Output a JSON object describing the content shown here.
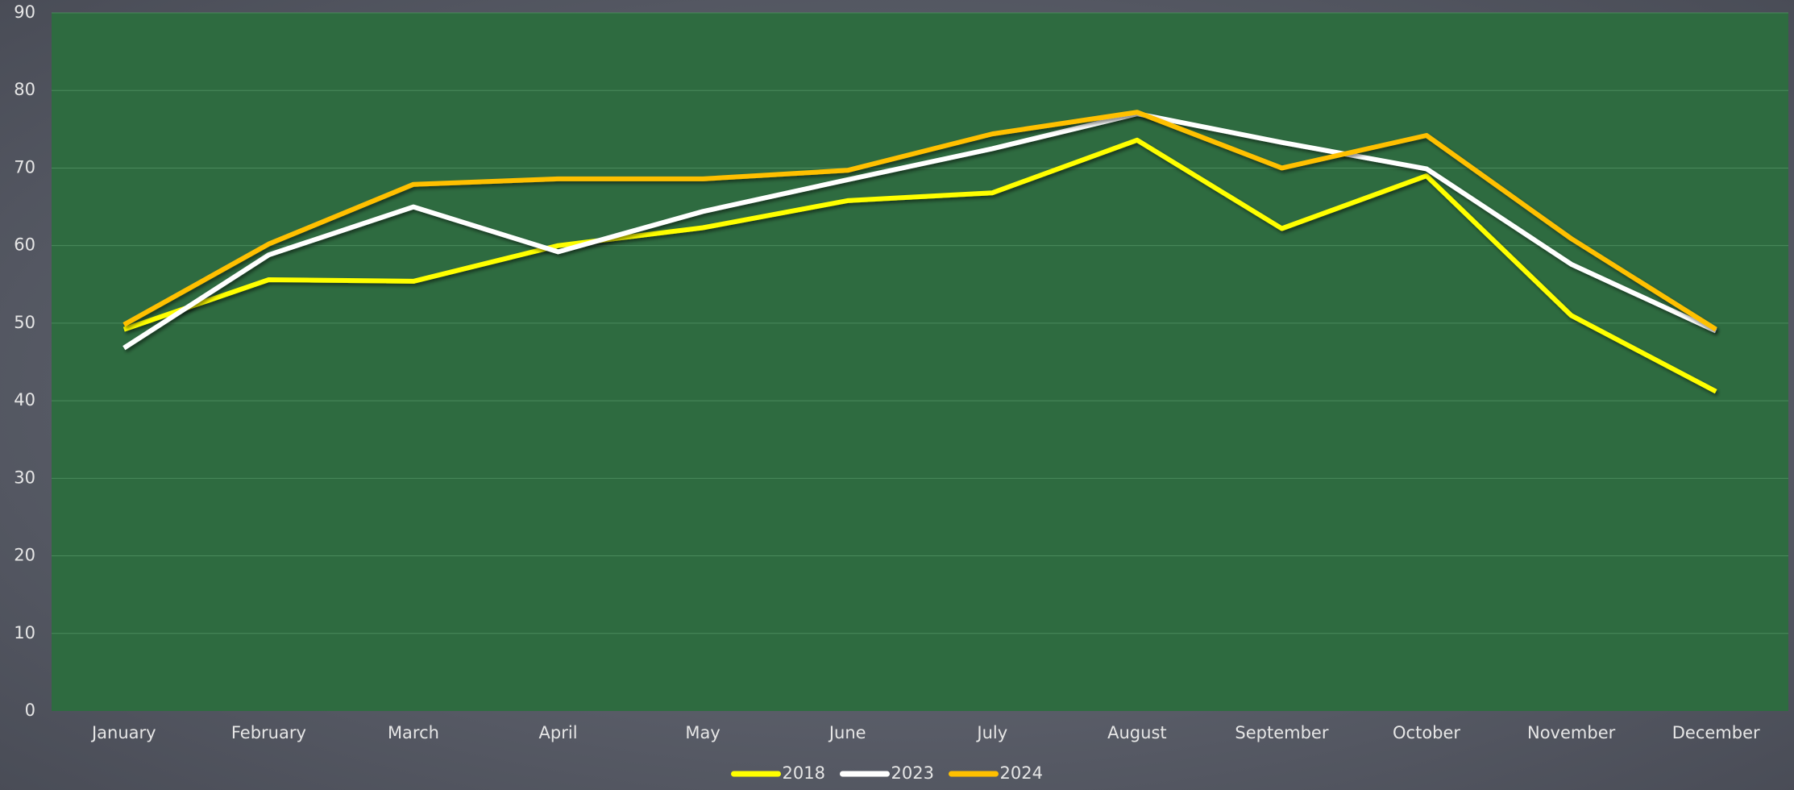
{
  "chart_data": {
    "type": "line",
    "categories": [
      "January",
      "February",
      "March",
      "April",
      "May",
      "June",
      "July",
      "August",
      "September",
      "October",
      "November",
      "December"
    ],
    "series": [
      {
        "name": "2018",
        "color": "#ffff00",
        "values": [
          49.2,
          55.6,
          55.4,
          60,
          62.3,
          65.8,
          66.8,
          73.6,
          62.2,
          69,
          51,
          41.2
        ]
      },
      {
        "name": "2023",
        "color": "#ffffff",
        "values": [
          46.8,
          58.8,
          65,
          59.2,
          64.4,
          68.5,
          72.5,
          77,
          73.3,
          69.9,
          57.6,
          49
        ]
      },
      {
        "name": "2024",
        "color": "#ffc000",
        "values": [
          49.8,
          60.2,
          67.9,
          68.6,
          68.6,
          69.7,
          74.4,
          77.2,
          70,
          74.2,
          60.9,
          49.2
        ]
      }
    ],
    "ylim": [
      0,
      90
    ],
    "yticks": [
      0,
      10,
      20,
      30,
      40,
      50,
      60,
      70,
      80,
      90
    ],
    "grid": true,
    "legend": "bottom"
  }
}
